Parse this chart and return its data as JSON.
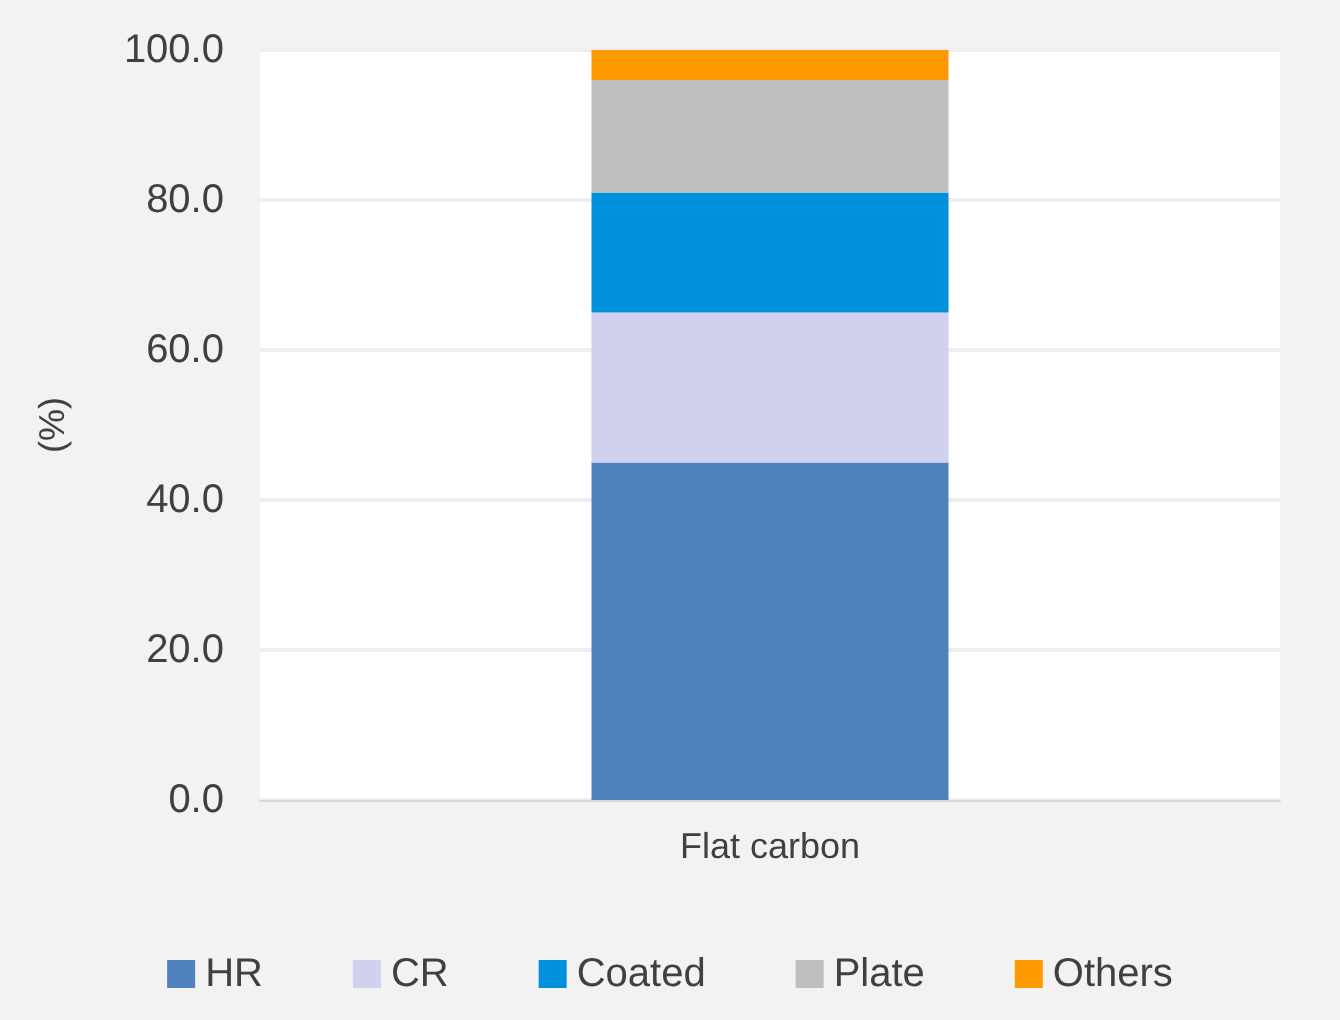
{
  "chart_data": {
    "type": "bar",
    "stacked": true,
    "ylabel": "(%)",
    "categories": [
      "Flat carbon"
    ],
    "series": [
      {
        "name": "HR",
        "color": "#4f81bd",
        "values": [
          45
        ]
      },
      {
        "name": "CR",
        "color": "#d0d0ef",
        "values": [
          20
        ]
      },
      {
        "name": "Coated",
        "color": "#0091dc",
        "values": [
          16
        ]
      },
      {
        "name": "Plate",
        "color": "#bfbfbf",
        "values": [
          15
        ]
      },
      {
        "name": "Others",
        "color": "#ff9900",
        "values": [
          4
        ]
      }
    ],
    "ylim": [
      0,
      100
    ],
    "yticks": [
      {
        "value": 0,
        "label": "0.0"
      },
      {
        "value": 20,
        "label": "20.0"
      },
      {
        "value": 40,
        "label": "40.0"
      },
      {
        "value": 60,
        "label": "60.0"
      },
      {
        "value": 80,
        "label": "80.0"
      },
      {
        "value": 100,
        "label": "100.0"
      }
    ],
    "grid": "y",
    "legend": "bottom"
  }
}
